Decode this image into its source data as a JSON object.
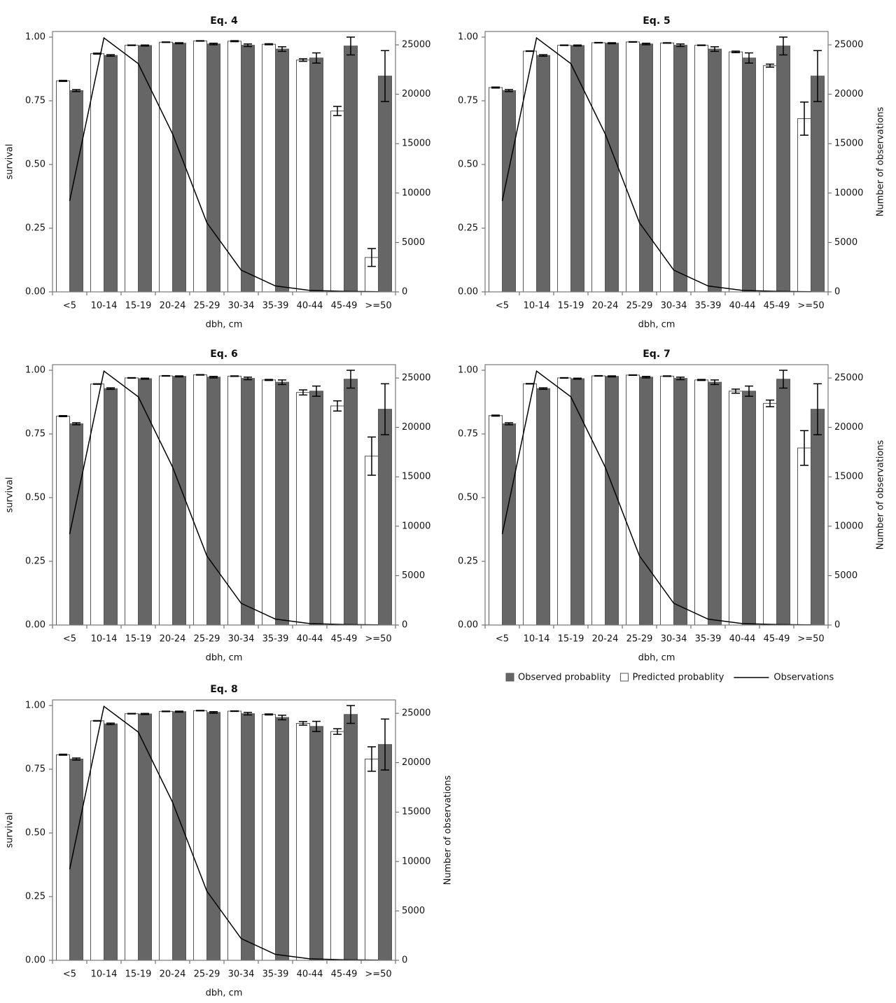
{
  "chart_data": [
    {
      "type": "bar",
      "title": "Eq. 4",
      "xlabel": "dbh, cm",
      "ylabel": "survival",
      "categories": [
        "<5",
        "10-14",
        "15-19",
        "20-24",
        "25-29",
        "30-34",
        "35-39",
        "40-44",
        "45-49",
        ">=50"
      ],
      "series": [
        {
          "color": "#ffffff",
          "values": [
            0.828,
            0.935,
            0.968,
            0.98,
            0.985,
            0.984,
            0.972,
            0.91,
            0.71,
            0.135
          ],
          "errors": [
            0.002,
            0.002,
            0.001,
            0.001,
            0.001,
            0.002,
            0.002,
            0.005,
            0.018,
            0.035
          ]
        },
        {
          "color": "#666666",
          "values": [
            0.79,
            0.928,
            0.967,
            0.976,
            0.973,
            0.968,
            0.953,
            0.918,
            0.965,
            0.847
          ],
          "errors": [
            0.004,
            0.003,
            0.002,
            0.002,
            0.003,
            0.005,
            0.009,
            0.02,
            0.035,
            0.1
          ]
        },
        {
          "color": "#000000",
          "axis": "y2",
          "values": [
            9200,
            25700,
            23100,
            16000,
            7000,
            2200,
            600,
            150,
            50,
            20
          ]
        }
      ],
      "ylim": [
        0,
        1.022
      ],
      "yticks": [
        {
          "value": 0,
          "label": "0.00"
        },
        0.25,
        {
          "value": 0.5,
          "label": "0.50"
        },
        0.75,
        {
          "value": 1,
          "label": "1.00"
        }
      ],
      "y2lim": [
        0,
        26350
      ],
      "y2ticks": [
        0,
        5000,
        10000,
        15000,
        20000,
        25000
      ]
    },
    {
      "type": "bar",
      "title": "Eq. 5",
      "xlabel": "dbh, cm",
      "y2label": "Number of observations",
      "categories": [
        "<5",
        "10-14",
        "15-19",
        "20-24",
        "25-29",
        "30-34",
        "35-39",
        "40-44",
        "45-49",
        ">=50"
      ],
      "series": [
        {
          "color": "#ffffff",
          "values": [
            0.802,
            0.945,
            0.968,
            0.978,
            0.981,
            0.977,
            0.968,
            0.942,
            0.888,
            0.68
          ],
          "errors": [
            0.002,
            0.001,
            0.001,
            0.001,
            0.001,
            0.001,
            0.001,
            0.003,
            0.006,
            0.065
          ]
        },
        {
          "color": "#666666",
          "values": [
            0.79,
            0.928,
            0.967,
            0.976,
            0.973,
            0.968,
            0.953,
            0.918,
            0.965,
            0.847
          ],
          "errors": [
            0.004,
            0.003,
            0.002,
            0.002,
            0.003,
            0.005,
            0.009,
            0.02,
            0.035,
            0.1
          ]
        },
        {
          "color": "#000000",
          "axis": "y2",
          "values": [
            9200,
            25700,
            23100,
            16000,
            7000,
            2200,
            600,
            150,
            50,
            20
          ]
        }
      ],
      "ylim": [
        0,
        1.022
      ],
      "yticks": [
        {
          "value": 0,
          "label": "0.00"
        },
        0.25,
        {
          "value": 0.5,
          "label": "0.50"
        },
        0.75,
        {
          "value": 1,
          "label": "1.00"
        }
      ],
      "y2lim": [
        0,
        26350
      ],
      "y2ticks": [
        0,
        5000,
        10000,
        15000,
        20000,
        25000
      ]
    },
    {
      "type": "bar",
      "title": "Eq. 6",
      "xlabel": "dbh, cm",
      "ylabel": "survival",
      "categories": [
        "<5",
        "10-14",
        "15-19",
        "20-24",
        "25-29",
        "30-34",
        "35-39",
        "40-44",
        "45-49",
        ">=50"
      ],
      "series": [
        {
          "color": "#ffffff",
          "values": [
            0.82,
            0.946,
            0.97,
            0.978,
            0.982,
            0.977,
            0.962,
            0.913,
            0.86,
            0.663
          ],
          "errors": [
            0.002,
            0.001,
            0.001,
            0.001,
            0.001,
            0.001,
            0.002,
            0.01,
            0.02,
            0.075
          ]
        },
        {
          "color": "#666666",
          "values": [
            0.79,
            0.928,
            0.967,
            0.976,
            0.973,
            0.968,
            0.953,
            0.918,
            0.965,
            0.847
          ],
          "errors": [
            0.004,
            0.003,
            0.002,
            0.002,
            0.003,
            0.005,
            0.009,
            0.02,
            0.035,
            0.1
          ]
        },
        {
          "color": "#000000",
          "axis": "y2",
          "values": [
            9200,
            25700,
            23100,
            16000,
            7000,
            2200,
            600,
            150,
            50,
            20
          ]
        }
      ],
      "ylim": [
        0,
        1.022
      ],
      "yticks": [
        {
          "value": 0,
          "label": "0.00"
        },
        0.25,
        {
          "value": 0.5,
          "label": "0.50"
        },
        0.75,
        {
          "value": 1,
          "label": "1.00"
        }
      ],
      "y2lim": [
        0,
        26350
      ],
      "y2ticks": [
        0,
        5000,
        10000,
        15000,
        20000,
        25000
      ]
    },
    {
      "type": "bar",
      "title": "Eq. 7",
      "xlabel": "dbh, cm",
      "y2label": "Number of observations",
      "legend": "below",
      "categories": [
        "<5",
        "10-14",
        "15-19",
        "20-24",
        "25-29",
        "30-34",
        "35-39",
        "40-44",
        "45-49",
        ">=50"
      ],
      "series": [
        {
          "name": "Predicted probablity",
          "color": "#ffffff",
          "values": [
            0.822,
            0.947,
            0.97,
            0.978,
            0.981,
            0.977,
            0.962,
            0.918,
            0.87,
            0.695
          ],
          "errors": [
            0.002,
            0.001,
            0.001,
            0.001,
            0.001,
            0.001,
            0.002,
            0.008,
            0.013,
            0.068
          ]
        },
        {
          "name": "Observed probablity",
          "color": "#666666",
          "values": [
            0.79,
            0.928,
            0.967,
            0.976,
            0.973,
            0.968,
            0.953,
            0.918,
            0.965,
            0.847
          ],
          "errors": [
            0.004,
            0.003,
            0.002,
            0.002,
            0.003,
            0.005,
            0.009,
            0.02,
            0.035,
            0.1
          ]
        },
        {
          "name": "Observations",
          "color": "#000000",
          "axis": "y2",
          "values": [
            9200,
            25700,
            23100,
            16000,
            7000,
            2200,
            600,
            150,
            50,
            20
          ]
        }
      ],
      "ylim": [
        0,
        1.022
      ],
      "yticks": [
        {
          "value": 0,
          "label": "0.00"
        },
        0.25,
        {
          "value": 0.5,
          "label": "0.50"
        },
        0.75,
        {
          "value": 1,
          "label": "1.00"
        }
      ],
      "y2lim": [
        0,
        26350
      ],
      "y2ticks": [
        0,
        5000,
        10000,
        15000,
        20000,
        25000
      ]
    },
    {
      "type": "bar",
      "title": "Eq. 8",
      "xlabel": "dbh, cm",
      "ylabel": "survival",
      "y2label": "Number of observations",
      "categories": [
        "<5",
        "10-14",
        "15-19",
        "20-24",
        "25-29",
        "30-34",
        "35-39",
        "40-44",
        "45-49",
        ">=50"
      ],
      "series": [
        {
          "color": "#ffffff",
          "values": [
            0.807,
            0.94,
            0.968,
            0.977,
            0.98,
            0.978,
            0.965,
            0.93,
            0.898,
            0.79
          ],
          "errors": [
            0.002,
            0.001,
            0.001,
            0.001,
            0.001,
            0.001,
            0.002,
            0.007,
            0.011,
            0.048
          ]
        },
        {
          "color": "#666666",
          "values": [
            0.79,
            0.928,
            0.967,
            0.976,
            0.973,
            0.968,
            0.953,
            0.918,
            0.965,
            0.847
          ],
          "errors": [
            0.004,
            0.003,
            0.002,
            0.002,
            0.003,
            0.005,
            0.009,
            0.02,
            0.035,
            0.1
          ]
        },
        {
          "color": "#000000",
          "axis": "y2",
          "values": [
            9200,
            25700,
            23100,
            16000,
            7000,
            2200,
            600,
            150,
            50,
            20
          ]
        }
      ],
      "ylim": [
        0,
        1.022
      ],
      "yticks": [
        {
          "value": 0,
          "label": "0.00"
        },
        0.25,
        {
          "value": 0.5,
          "label": "0.50"
        },
        0.75,
        {
          "value": 1,
          "label": "1.00"
        }
      ],
      "y2lim": [
        0,
        26350
      ],
      "y2ticks": [
        0,
        5000,
        10000,
        15000,
        20000,
        25000
      ]
    }
  ]
}
